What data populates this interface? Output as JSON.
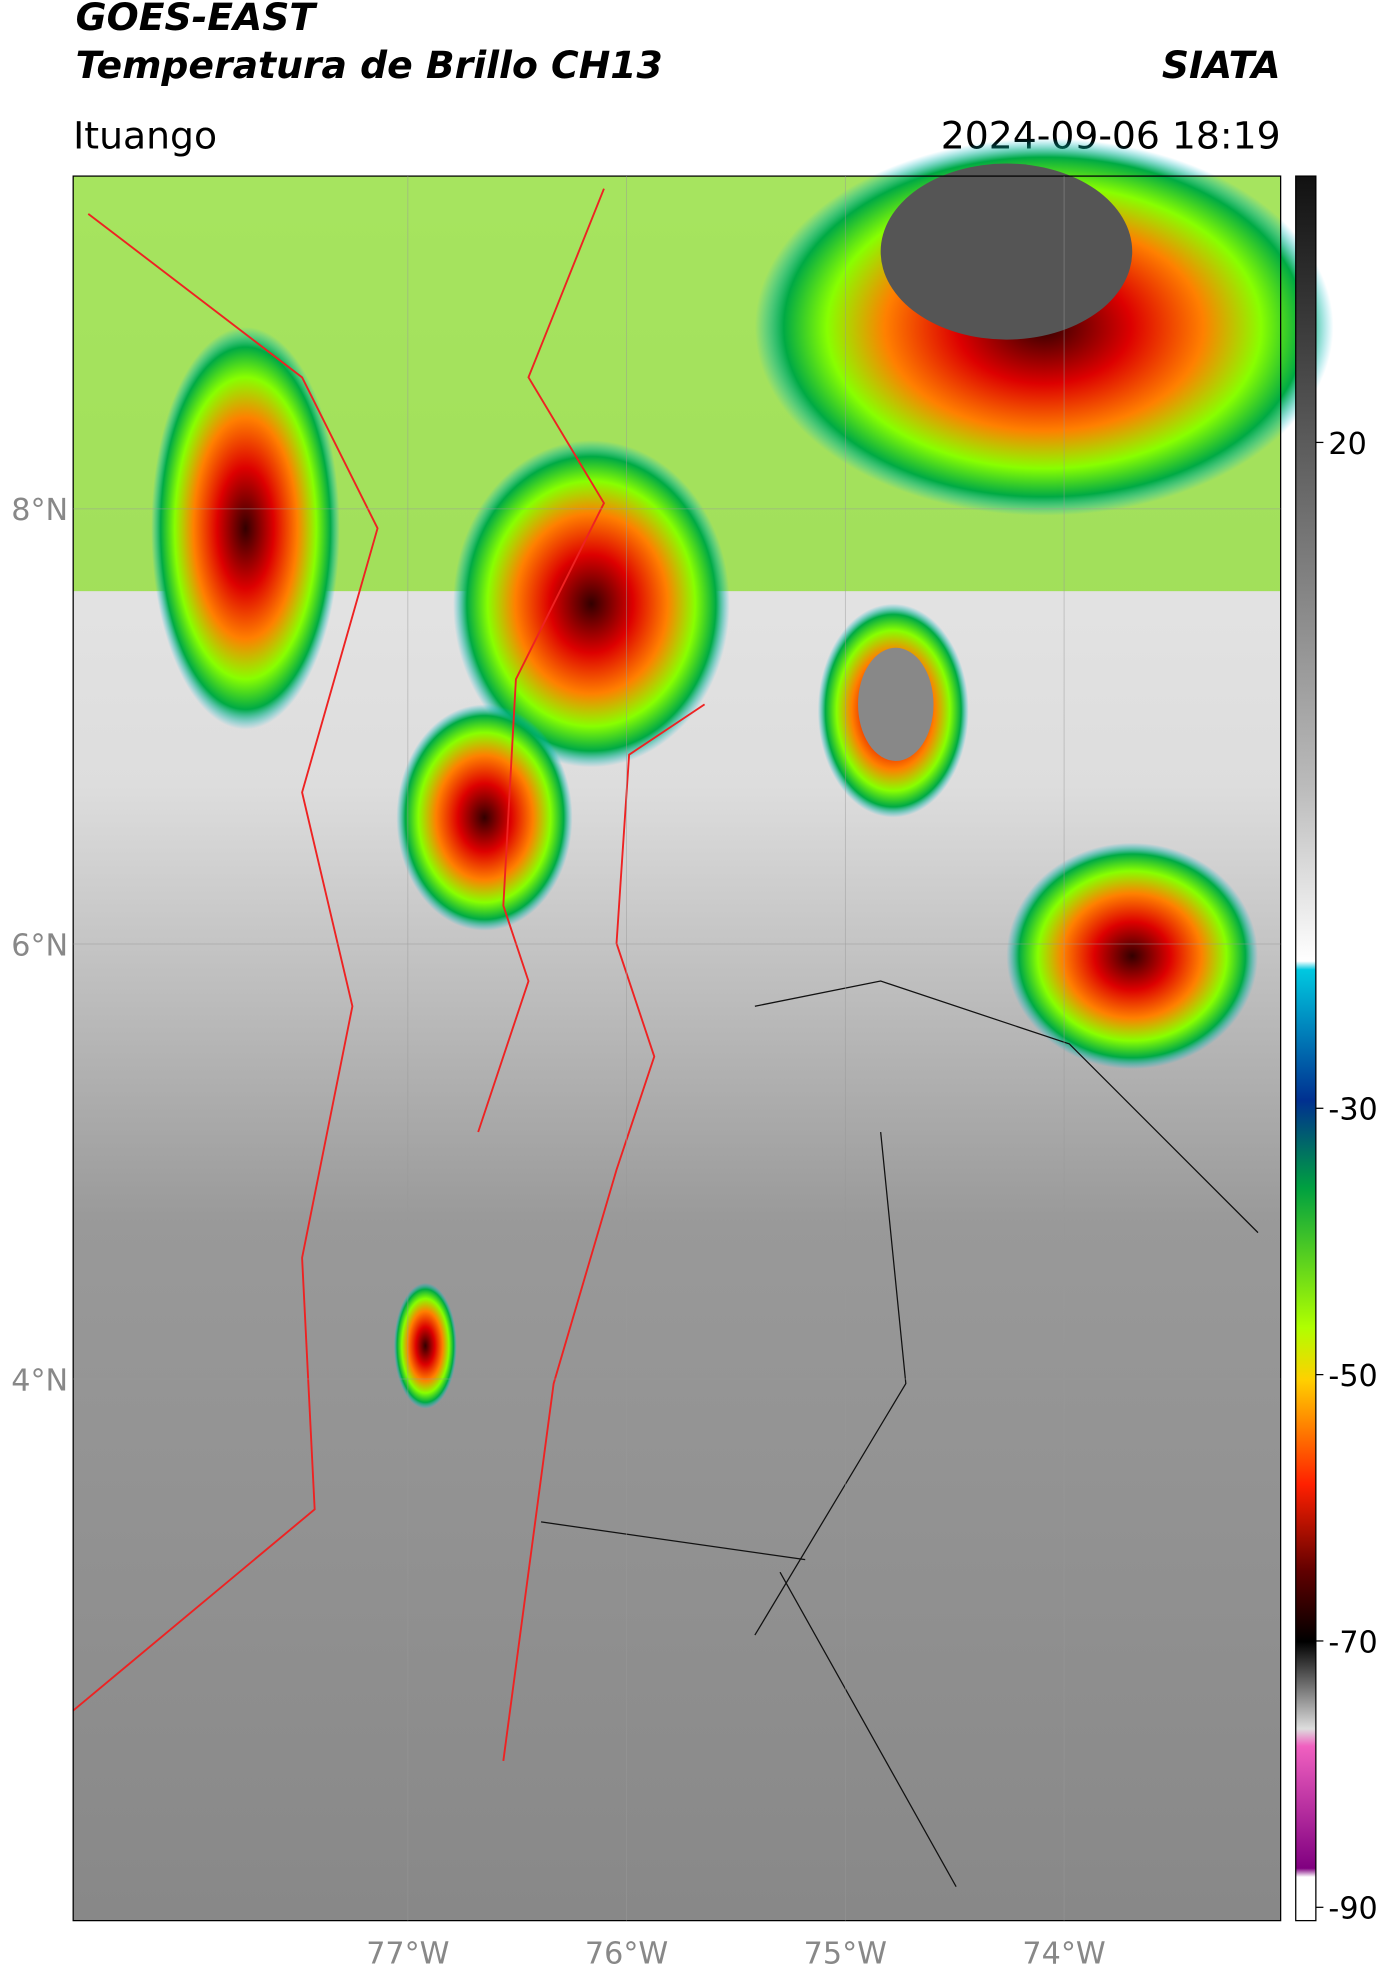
{
  "header": {
    "satellite": "GOES-EAST",
    "product": "Temperatura de Brillo CH13",
    "agency": "SIATA",
    "region": "Ituango",
    "datetime": "2024-09-06 18:19"
  },
  "map": {
    "lonlim": [
      -78.53,
      -73.01
    ],
    "latlim": [
      1.51,
      9.53
    ],
    "lonticks": [
      {
        "value": -77,
        "label": "77°W"
      },
      {
        "value": -76,
        "label": "76°W"
      },
      {
        "value": -75,
        "label": "75°W"
      },
      {
        "value": -74,
        "label": "74°W"
      }
    ],
    "latticks": [
      {
        "value": 4,
        "label": "4°N"
      },
      {
        "value": 6,
        "label": "6°N"
      },
      {
        "value": 8,
        "label": "8°N"
      }
    ]
  },
  "colorbar": {
    "lim": [
      -91,
      40
    ],
    "ticks": [
      20,
      -30,
      -50,
      -70,
      -90
    ]
  }
}
